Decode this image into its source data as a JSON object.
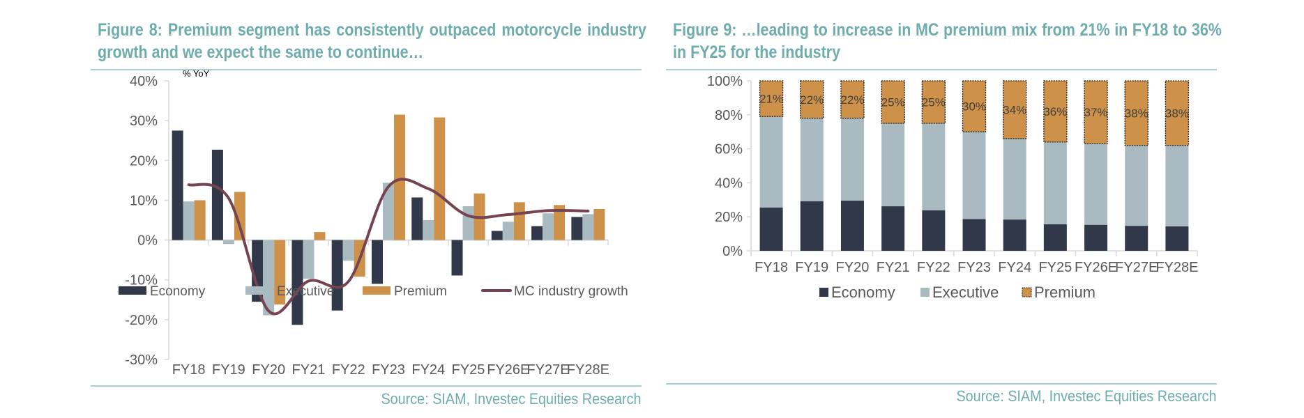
{
  "figures": [
    {
      "title": "Figure 8: Premium segment has consistently outpaced motorcycle industry growth and we expect the same to continue…",
      "source": "Source: SIAM, Investec Equities Research"
    },
    {
      "title": "Figure 9: …leading to increase in MC premium mix from 21% in FY18 to 36% in FY25 for the industry",
      "source": "Source: SIAM, Investec Equities Research"
    }
  ],
  "colors": {
    "economy": "#313849",
    "executive": "#a9bac1",
    "premium": "#cd914a",
    "line": "#764350",
    "title": "#6eacad",
    "axis_text": "#595959"
  },
  "chart_data": [
    {
      "type": "bar",
      "subtype": "grouped-bar-with-line",
      "title": "",
      "ylabel": "% YoY",
      "xlabel": "",
      "ylim": [
        -30,
        40
      ],
      "yticks": [
        -30,
        -20,
        -10,
        0,
        10,
        20,
        30,
        40
      ],
      "ytick_labels": [
        "-30%",
        "-20%",
        "-10%",
        "0%",
        "10%",
        "20%",
        "30%",
        "40%"
      ],
      "categories": [
        "FY18",
        "FY19",
        "FY20",
        "FY21",
        "FY22",
        "FY23",
        "FY24",
        "FY25",
        "FY26E",
        "FY27E",
        "FY28E"
      ],
      "series": [
        {
          "name": "Economy",
          "kind": "bar",
          "color_key": "economy",
          "values": [
            27.5,
            22.7,
            -15.5,
            -21.3,
            -17.7,
            -11,
            10.7,
            -8.9,
            2.3,
            3.5,
            5.8
          ]
        },
        {
          "name": "Executive",
          "kind": "bar",
          "color_key": "executive",
          "values": [
            9.7,
            -1,
            -18.9,
            -9.7,
            -5.2,
            14.4,
            5,
            8.5,
            4.6,
            6.7,
            6.5
          ]
        },
        {
          "name": "Premium",
          "kind": "bar",
          "color_key": "premium",
          "values": [
            10,
            12.1,
            -16.2,
            2,
            -9.2,
            31.5,
            30.8,
            11.7,
            9.5,
            8.8,
            7.8
          ]
        },
        {
          "name": "MC industry growth",
          "kind": "line",
          "color_key": "line",
          "values": [
            13.9,
            10.5,
            -17.8,
            -10.3,
            -10.4,
            13.4,
            12.9,
            6.1,
            6.4,
            7.4,
            7.3
          ]
        }
      ],
      "legend": [
        "Economy",
        "Executive",
        "Premium",
        "MC industry growth"
      ],
      "legend_position": "bottom",
      "grid": false
    },
    {
      "type": "bar",
      "subtype": "stacked-100",
      "title": "",
      "xlabel": "",
      "ylabel": "",
      "ylim": [
        0,
        100
      ],
      "yticks": [
        0,
        20,
        40,
        60,
        80,
        100
      ],
      "ytick_labels": [
        "0%",
        "20%",
        "40%",
        "60%",
        "80%",
        "100%"
      ],
      "categories": [
        "FY18",
        "FY19",
        "FY20",
        "FY21",
        "FY22",
        "FY23",
        "FY24",
        "FY25",
        "FY26E",
        "FY27E",
        "FY28E"
      ],
      "series": [
        {
          "name": "Economy",
          "color_key": "economy",
          "values": [
            25.5,
            29.2,
            29.5,
            26.2,
            23.8,
            18.7,
            18.4,
            15.6,
            15.3,
            14.7,
            14.4
          ]
        },
        {
          "name": "Executive",
          "color_key": "executive",
          "values": [
            53.5,
            48.8,
            48.5,
            48.8,
            51.2,
            51.3,
            47.6,
            48.4,
            47.7,
            47.3,
            47.6
          ]
        },
        {
          "name": "Premium",
          "color_key": "premium",
          "values": [
            21,
            22,
            22,
            25,
            25,
            30,
            34,
            36,
            37,
            38,
            38
          ]
        }
      ],
      "data_labels": {
        "series": "Premium",
        "labels": [
          "21%",
          "22%",
          "22%",
          "25%",
          "25%",
          "30%",
          "34%",
          "36%",
          "37%",
          "38%",
          "38%"
        ]
      },
      "legend": [
        "Economy",
        "Executive",
        "Premium"
      ],
      "legend_position": "bottom",
      "grid": false
    }
  ]
}
